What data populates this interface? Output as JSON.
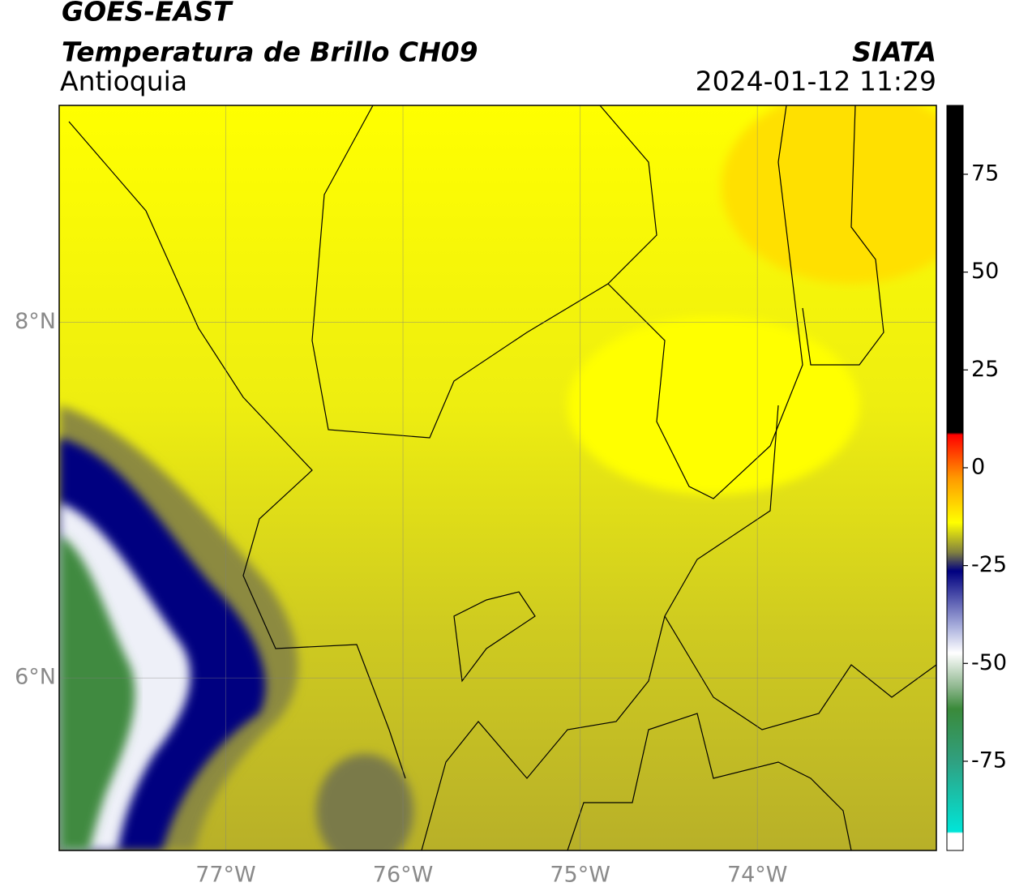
{
  "header": {
    "title": "GOES-EAST",
    "subtitle": "Temperatura de Brillo CH09",
    "region": "Antioquia",
    "source": "SIATA",
    "datetime": "2024-01-12 11:29"
  },
  "map": {
    "lonlim": [
      -77.94,
      -72.99
    ],
    "latlim": [
      5.03,
      9.22
    ],
    "lonticks": [
      {
        "value": -77,
        "label": "77°W"
      },
      {
        "value": -76,
        "label": "76°W"
      },
      {
        "value": -75,
        "label": "75°W"
      },
      {
        "value": -74,
        "label": "74°W"
      }
    ],
    "latticks": [
      {
        "value": 8,
        "label": "8°N"
      },
      {
        "value": 6,
        "label": "6°N"
      }
    ],
    "grid": true
  },
  "colorbar": {
    "clim": [
      -97.8,
      92.6
    ],
    "ticks": [
      75,
      50,
      25,
      0,
      -25,
      -50,
      -75
    ]
  }
}
